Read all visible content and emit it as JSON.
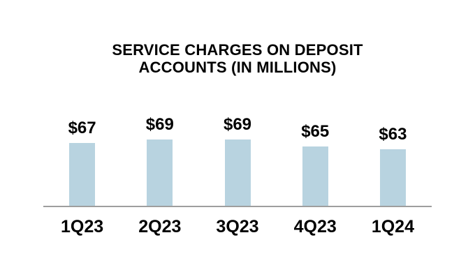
{
  "chart_data": {
    "type": "bar",
    "title": "SERVICE CHARGES ON DEPOSIT ACCOUNTS (IN MILLIONS)",
    "categories": [
      "1Q23",
      "2Q23",
      "3Q23",
      "4Q23",
      "1Q24"
    ],
    "values": [
      67,
      69,
      69,
      65,
      63
    ],
    "value_labels": [
      "$67",
      "$69",
      "$69",
      "$65",
      "$63"
    ],
    "xlabel": "",
    "ylabel": "",
    "ylim": [
      28,
      110
    ],
    "y_axis_visible": false,
    "grid": false,
    "legend": "none",
    "bar_color": "#b8d3e0",
    "axis_line_color": "#9e9e9e",
    "text_color": "#000000"
  }
}
